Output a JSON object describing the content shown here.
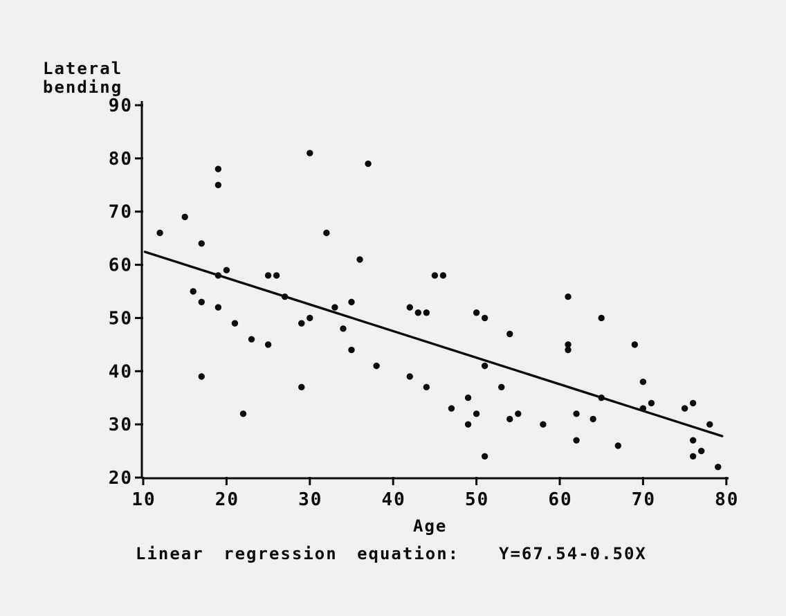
{
  "figure": {
    "background": "#f0f0ee",
    "ink": "#0c0c0c"
  },
  "chart_data": {
    "type": "scatter",
    "title": "",
    "ylabel": "Lateral bending",
    "ylabel_lines": [
      "Lateral",
      "bending"
    ],
    "xlabel": "Age",
    "x_ticks": [
      10,
      20,
      30,
      40,
      50,
      60,
      70,
      80
    ],
    "y_ticks": [
      90,
      80,
      70,
      60,
      50,
      40,
      30,
      20
    ],
    "xlim": [
      10,
      80
    ],
    "ylim": [
      20,
      90
    ],
    "grid": false,
    "legend": false,
    "points": [
      [
        30,
        81
      ],
      [
        37,
        79
      ],
      [
        19,
        78
      ],
      [
        19,
        75
      ],
      [
        15,
        69
      ],
      [
        12,
        66
      ],
      [
        17,
        64
      ],
      [
        32,
        66
      ],
      [
        36,
        61
      ],
      [
        20,
        59
      ],
      [
        19,
        58
      ],
      [
        25,
        58
      ],
      [
        26,
        58
      ],
      [
        45,
        58
      ],
      [
        46,
        58
      ],
      [
        16,
        55
      ],
      [
        27,
        54
      ],
      [
        61,
        54
      ],
      [
        17,
        53
      ],
      [
        35,
        53
      ],
      [
        19,
        52
      ],
      [
        33,
        52
      ],
      [
        42,
        52
      ],
      [
        43,
        51
      ],
      [
        44,
        51
      ],
      [
        50,
        51
      ],
      [
        51,
        50
      ],
      [
        30,
        50
      ],
      [
        65,
        50
      ],
      [
        21,
        49
      ],
      [
        29,
        49
      ],
      [
        34,
        48
      ],
      [
        54,
        47
      ],
      [
        23,
        46
      ],
      [
        25,
        45
      ],
      [
        61,
        45
      ],
      [
        69,
        45
      ],
      [
        35,
        44
      ],
      [
        61,
        44
      ],
      [
        38,
        41
      ],
      [
        51,
        41
      ],
      [
        17,
        39
      ],
      [
        42,
        39
      ],
      [
        29,
        37
      ],
      [
        44,
        37
      ],
      [
        53,
        37
      ],
      [
        70,
        38
      ],
      [
        49,
        35
      ],
      [
        65,
        35
      ],
      [
        71,
        34
      ],
      [
        76,
        34
      ],
      [
        47,
        33
      ],
      [
        75,
        33
      ],
      [
        70,
        33
      ],
      [
        22,
        32
      ],
      [
        50,
        32
      ],
      [
        55,
        32
      ],
      [
        62,
        32
      ],
      [
        58,
        30
      ],
      [
        49,
        30
      ],
      [
        54,
        31
      ],
      [
        64,
        31
      ],
      [
        78,
        30
      ],
      [
        76,
        27
      ],
      [
        62,
        27
      ],
      [
        67,
        26
      ],
      [
        77,
        25
      ],
      [
        76,
        24
      ],
      [
        51,
        24
      ],
      [
        79,
        22
      ]
    ],
    "regression": {
      "equation": "Y=67.54-0.50X",
      "intercept": 67.54,
      "slope": -0.5,
      "x_start": 10.2,
      "x_end": 79.5
    },
    "caption": "Linear regression equation:  Y=67.54-0.50X"
  }
}
